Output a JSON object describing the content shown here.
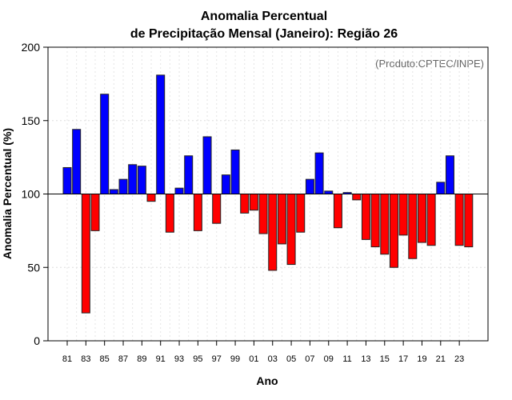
{
  "chart_data": {
    "type": "bar",
    "title": "Anomalia Percentual",
    "subtitle": "de Precipitação Mensal (Janeiro): Região 26",
    "xlabel": "Ano",
    "ylabel": "Anomalia Percentual (%)",
    "annotation": "(Produto:CPTEC/INPE)",
    "ylim": [
      0,
      200
    ],
    "yticks": [
      0,
      50,
      100,
      150,
      200
    ],
    "baseline": 100,
    "xtick_labels": [
      "81",
      "83",
      "85",
      "87",
      "89",
      "91",
      "93",
      "95",
      "97",
      "99",
      "01",
      "03",
      "05",
      "07",
      "09",
      "11",
      "13",
      "15",
      "17",
      "19",
      "21",
      "23"
    ],
    "categories": [
      1981,
      1982,
      1983,
      1984,
      1985,
      1986,
      1987,
      1988,
      1989,
      1990,
      1991,
      1992,
      1993,
      1994,
      1995,
      1996,
      1997,
      1998,
      1999,
      2000,
      2001,
      2002,
      2003,
      2004,
      2005,
      2006,
      2007,
      2008,
      2009,
      2010,
      2011,
      2012,
      2013,
      2014,
      2015,
      2016,
      2017,
      2018,
      2019,
      2020,
      2021,
      2022,
      2023,
      2024
    ],
    "values": [
      118,
      144,
      19,
      75,
      168,
      103,
      110,
      120,
      119,
      95,
      181,
      74,
      104,
      126,
      75,
      139,
      80,
      113,
      130,
      87,
      89,
      73,
      48,
      66,
      52,
      74,
      110,
      128,
      102,
      77,
      101,
      96,
      69,
      64,
      59,
      50,
      72,
      56,
      67,
      65,
      108,
      126,
      65,
      64
    ],
    "colors": {
      "above": "#0000ff",
      "below": "#ff0000"
    }
  }
}
